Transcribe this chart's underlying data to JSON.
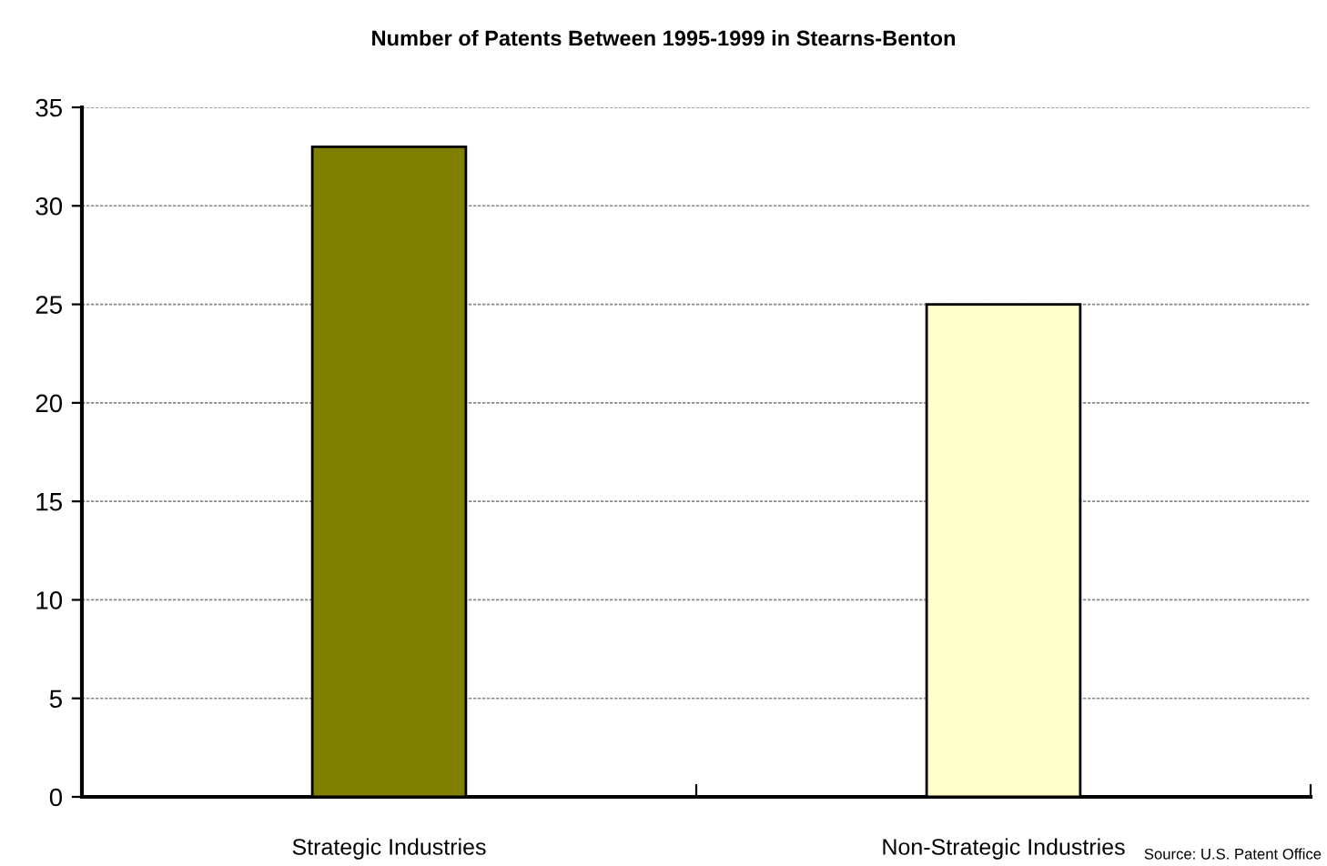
{
  "chart_data": {
    "type": "bar",
    "title": "Number of Patents Between 1995-1999 in Stearns-Benton",
    "categories": [
      "Strategic Industries",
      "Non-Strategic Industries"
    ],
    "values": [
      33,
      25
    ],
    "colors": [
      "#808000",
      "#ffffcc"
    ],
    "ylim": [
      0,
      35
    ],
    "yticks": [
      0,
      5,
      10,
      15,
      20,
      25,
      30,
      35
    ],
    "grid": "y",
    "annotations": [
      "Source: U.S. Patent Office"
    ]
  }
}
